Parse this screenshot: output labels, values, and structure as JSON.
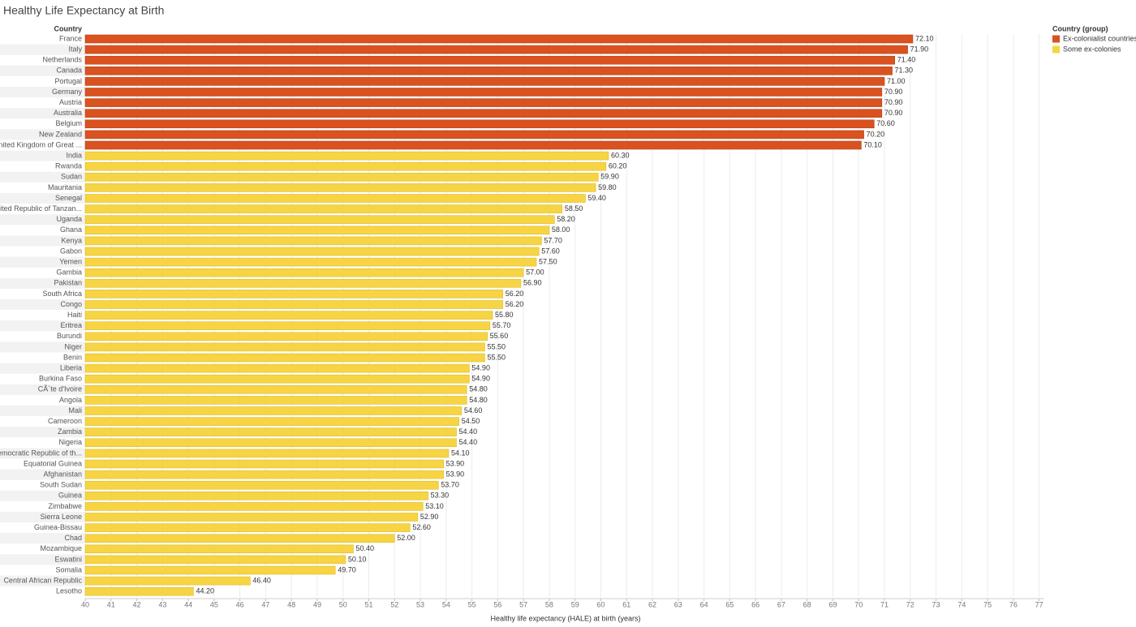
{
  "chart_data": {
    "type": "hbar",
    "title": "Healthy Life Expectancy at Birth",
    "y_axis_label": "Country",
    "x_axis_label": "Healthy life expectancy (HALE) at birth (years)",
    "legend_title": "Country (group)",
    "categories": [
      "France",
      "Italy",
      "Netherlands",
      "Canada",
      "Portugal",
      "Germany",
      "Austria",
      "Australia",
      "Belgium",
      "New Zealand",
      "United Kingdom of Great ...",
      "India",
      "Rwanda",
      "Sudan",
      "Mauritania",
      "Senegal",
      "United Republic of Tanzan...",
      "Uganda",
      "Ghana",
      "Kenya",
      "Gabon",
      "Yemen",
      "Gambia",
      "Pakistan",
      "South Africa",
      "Congo",
      "Haiti",
      "Eritrea",
      "Burundi",
      "Niger",
      "Benin",
      "Liberia",
      "Burkina Faso",
      "CÃ´te d'Ivoire",
      "Angola",
      "Mali",
      "Cameroon",
      "Zambia",
      "Nigeria",
      "Democratic Republic of th...",
      "Equatorial Guinea",
      "Afghanistan",
      "South Sudan",
      "Guinea",
      "Zimbabwe",
      "Sierra Leone",
      "Guinea-Bissau",
      "Chad",
      "Mozambique",
      "Eswatini",
      "Somalia",
      "Central African Republic",
      "Lesotho"
    ],
    "series": [
      {
        "name": "Ex-colonialist countries",
        "color": "#d9521f",
        "values": [
          72.1,
          71.9,
          71.4,
          71.3,
          71.0,
          70.9,
          70.9,
          70.9,
          70.6,
          70.2,
          70.1,
          null,
          null,
          null,
          null,
          null,
          null,
          null,
          null,
          null,
          null,
          null,
          null,
          null,
          null,
          null,
          null,
          null,
          null,
          null,
          null,
          null,
          null,
          null,
          null,
          null,
          null,
          null,
          null,
          null,
          null,
          null,
          null,
          null,
          null,
          null,
          null,
          null,
          null,
          null,
          null,
          null,
          null
        ],
        "value_labels": [
          "72.10",
          "71.90",
          "71.40",
          "71.30",
          "71.00",
          "70.90",
          "70.90",
          "70.90",
          "70.60",
          "70.20",
          "70.10",
          null,
          null,
          null,
          null,
          null,
          null,
          null,
          null,
          null,
          null,
          null,
          null,
          null,
          null,
          null,
          null,
          null,
          null,
          null,
          null,
          null,
          null,
          null,
          null,
          null,
          null,
          null,
          null,
          null,
          null,
          null,
          null,
          null,
          null,
          null,
          null,
          null,
          null,
          null,
          null,
          null,
          null
        ]
      },
      {
        "name": "Some ex-colonies",
        "color": "#f6d443",
        "values": [
          null,
          null,
          null,
          null,
          null,
          null,
          null,
          null,
          null,
          null,
          null,
          60.3,
          60.2,
          59.9,
          59.8,
          59.4,
          58.5,
          58.2,
          58.0,
          57.7,
          57.6,
          57.5,
          57.0,
          56.9,
          56.2,
          56.2,
          55.8,
          55.7,
          55.6,
          55.5,
          55.5,
          54.9,
          54.9,
          54.8,
          54.8,
          54.6,
          54.5,
          54.4,
          54.4,
          54.1,
          53.9,
          53.9,
          53.7,
          53.3,
          53.1,
          52.9,
          52.6,
          52.0,
          50.4,
          50.1,
          49.7,
          46.4,
          44.2
        ],
        "value_labels": [
          null,
          null,
          null,
          null,
          null,
          null,
          null,
          null,
          null,
          null,
          null,
          "60.30",
          "60.20",
          "59.90",
          "59.80",
          "59.40",
          "58.50",
          "58.20",
          "58.00",
          "57.70",
          "57.60",
          "57.50",
          "57.00",
          "56.90",
          "56.20",
          "56.20",
          "55.80",
          "55.70",
          "55.60",
          "55.50",
          "55.50",
          "54.90",
          "54.90",
          "54.80",
          "54.80",
          "54.60",
          "54.50",
          "54.40",
          "54.40",
          "54.10",
          "53.90",
          "53.90",
          "53.70",
          "53.30",
          "53.10",
          "52.90",
          "52.60",
          "52.00",
          "50.40",
          "50.10",
          "49.70",
          "46.40",
          "44.20"
        ]
      }
    ],
    "xlim": [
      40,
      77.2
    ],
    "xticks": [
      40,
      41,
      42,
      43,
      44,
      45,
      46,
      47,
      48,
      49,
      50,
      51,
      52,
      53,
      54,
      55,
      56,
      57,
      58,
      59,
      60,
      61,
      62,
      63,
      64,
      65,
      66,
      67,
      68,
      69,
      70,
      71,
      72,
      73,
      74,
      75,
      76,
      77
    ],
    "grid": true
  }
}
